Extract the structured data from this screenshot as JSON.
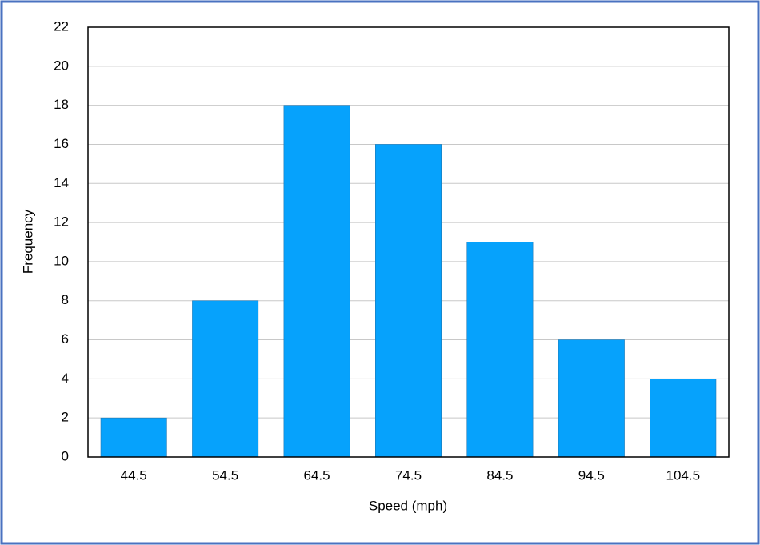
{
  "chart_data": {
    "type": "bar",
    "x_label": "Speed (mph)",
    "y_label": "Frequency",
    "categories": [
      "44.5",
      "54.5",
      "64.5",
      "74.5",
      "84.5",
      "94.5",
      "104.5"
    ],
    "values": [
      2,
      8,
      18,
      16,
      11,
      6,
      4
    ],
    "color": "#06a2fc",
    "ylim": [
      0,
      22
    ],
    "yticks": [
      0,
      2,
      4,
      6,
      8,
      10,
      12,
      14,
      16,
      18,
      20,
      22
    ],
    "grid": true
  }
}
